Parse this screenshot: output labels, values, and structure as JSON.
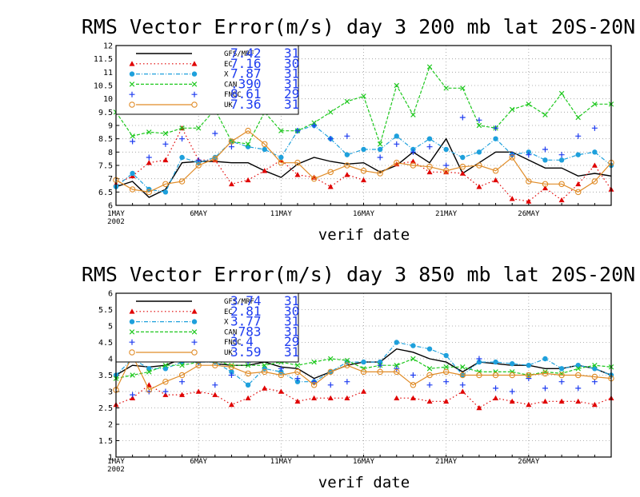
{
  "colors": {
    "GFS/MRF": "#000000",
    "EC": "#e00000",
    "X": "#1ea0dc",
    "CAN": "#1ec81e",
    "FNOC": "#1e3cf0",
    "UK": "#e08c28",
    "stat_text": "#1e3cf0",
    "grid": "#9a9a9a"
  },
  "chart_data": [
    {
      "type": "line",
      "title": "RMS Vector Error(m/s) day 3  200 mb   lat 20S-20N",
      "xlabel": "verif date",
      "ylabel": "",
      "x_start_label": "1MAY\n2002",
      "x_tick_labels": [
        "1MAY",
        "6MAY",
        "11MAY",
        "16MAY",
        "21MAY",
        "26MAY"
      ],
      "x_tick_days": [
        1,
        6,
        11,
        16,
        21,
        26
      ],
      "xlim": [
        1,
        31
      ],
      "ylim": [
        6,
        12
      ],
      "y_ticks": [
        6,
        6.5,
        7,
        7.5,
        8,
        8.5,
        9,
        9.5,
        10,
        10.5,
        11,
        11.5,
        12
      ],
      "grid": true,
      "legend_placement": "top-left",
      "series": [
        {
          "name": "GFS/MRF",
          "stat": "7.42",
          "count": "31",
          "marker": "none",
          "dash": "solid",
          "values": [
            6.7,
            6.9,
            6.3,
            6.6,
            7.6,
            7.65,
            7.65,
            7.6,
            7.6,
            7.3,
            7.05,
            7.55,
            7.8,
            7.65,
            7.55,
            7.6,
            7.25,
            7.5,
            8.0,
            7.6,
            8.5,
            7.2,
            7.6,
            8.0,
            8.0,
            7.7,
            7.4,
            7.4,
            7.1,
            7.2,
            7.1
          ]
        },
        {
          "name": "EC",
          "stat": "7.16",
          "count": "30",
          "marker": "triangle",
          "dash": "dotted",
          "values": [
            6.8,
            7.1,
            7.6,
            7.7,
            8.9,
            7.7,
            7.7,
            6.8,
            6.95,
            7.3,
            7.7,
            7.15,
            7.05,
            6.7,
            7.15,
            6.95,
            null,
            7.55,
            7.65,
            7.25,
            7.25,
            7.2,
            6.7,
            6.95,
            6.25,
            6.15,
            6.65,
            6.2,
            6.8,
            7.5,
            6.6
          ]
        },
        {
          "name": "X",
          "stat": "7.87",
          "count": "31",
          "marker": "circle",
          "dash": "dashdot",
          "values": [
            6.7,
            7.2,
            6.6,
            6.5,
            7.8,
            7.6,
            7.8,
            8.4,
            8.2,
            8.1,
            7.8,
            8.8,
            9.0,
            8.5,
            7.9,
            8.1,
            8.1,
            8.6,
            8.1,
            8.5,
            8.1,
            7.8,
            8.0,
            8.5,
            7.9,
            8.0,
            7.7,
            7.7,
            7.9,
            8.0,
            7.5
          ]
        },
        {
          "name": "CAN",
          "stat": ".390",
          "count": "31",
          "marker": "x",
          "dash": "dashed",
          "values": [
            9.5,
            8.6,
            8.75,
            8.7,
            8.9,
            8.9,
            9.6,
            8.4,
            8.3,
            9.5,
            8.8,
            8.8,
            9.1,
            9.5,
            9.9,
            10.1,
            8.3,
            10.5,
            9.4,
            11.2,
            10.4,
            10.4,
            9.0,
            8.9,
            9.6,
            9.8,
            9.4,
            10.2,
            9.3,
            9.8,
            9.8
          ]
        },
        {
          "name": "FNOC",
          "stat": "8.61",
          "count": "29",
          "marker": "plus",
          "dash": "none",
          "values": [
            null,
            8.4,
            7.8,
            8.3,
            8.5,
            7.7,
            8.7,
            8.2,
            9.6,
            null,
            9.9,
            8.8,
            9.0,
            8.5,
            8.6,
            null,
            7.8,
            8.3,
            8.0,
            8.2,
            7.5,
            9.3,
            9.2,
            8.9,
            7.9,
            7.9,
            8.1,
            7.9,
            8.6,
            8.9,
            null
          ]
        },
        {
          "name": "UK",
          "stat": "7.36",
          "count": "31",
          "marker": "opencircle",
          "dash": "solid",
          "values": [
            6.95,
            6.6,
            6.5,
            6.8,
            6.9,
            7.5,
            7.75,
            8.4,
            8.8,
            8.3,
            7.6,
            7.6,
            7.0,
            7.25,
            7.5,
            7.3,
            7.2,
            7.6,
            7.5,
            7.45,
            7.3,
            7.45,
            7.5,
            7.3,
            7.8,
            6.9,
            6.8,
            6.8,
            6.5,
            6.9,
            7.6
          ]
        }
      ]
    },
    {
      "type": "line",
      "title": "RMS Vector Error(m/s) day 3  850 mb   lat 20S-20N",
      "xlabel": "verif date",
      "ylabel": "",
      "x_start_label": "1MAY\n2002",
      "x_tick_labels": [
        "1MAY",
        "6MAY",
        "11MAY",
        "16MAY",
        "21MAY",
        "26MAY"
      ],
      "x_tick_days": [
        1,
        6,
        11,
        16,
        21,
        26
      ],
      "xlim": [
        1,
        31
      ],
      "ylim": [
        1,
        6
      ],
      "y_ticks": [
        1,
        1.5,
        2,
        2.5,
        3,
        3.5,
        4,
        4.5,
        5,
        5.5,
        6
      ],
      "grid": true,
      "legend_placement": "top-left",
      "series": [
        {
          "name": "GFS/MRF",
          "stat": "3.74",
          "count": "31",
          "marker": "none",
          "dash": "solid",
          "values": [
            3.5,
            3.8,
            3.75,
            3.8,
            4.0,
            4.2,
            3.85,
            3.8,
            3.8,
            3.9,
            3.75,
            3.7,
            3.4,
            3.6,
            3.8,
            3.9,
            3.9,
            4.3,
            4.2,
            4.0,
            3.9,
            3.6,
            3.9,
            3.85,
            3.8,
            3.8,
            3.7,
            3.7,
            3.8,
            3.7,
            3.5
          ]
        },
        {
          "name": "EC",
          "stat": "2.81",
          "count": "30",
          "marker": "triangle",
          "dash": "dotted",
          "values": [
            2.6,
            2.8,
            3.2,
            2.9,
            2.9,
            3.0,
            2.9,
            2.6,
            2.8,
            3.1,
            3.0,
            2.7,
            2.8,
            2.8,
            2.8,
            3.0,
            null,
            2.8,
            2.8,
            2.7,
            2.7,
            3.0,
            2.5,
            2.8,
            2.7,
            2.6,
            2.7,
            2.7,
            2.7,
            2.6,
            2.8
          ]
        },
        {
          "name": "X",
          "stat": "3.77",
          "count": "31",
          "marker": "circle",
          "dash": "dashdot",
          "values": [
            3.5,
            4.0,
            3.7,
            3.7,
            3.9,
            3.9,
            3.9,
            3.6,
            3.2,
            3.7,
            3.6,
            3.3,
            3.3,
            3.6,
            3.9,
            3.9,
            3.9,
            4.5,
            4.4,
            4.3,
            4.1,
            3.5,
            3.9,
            3.9,
            3.85,
            3.8,
            4.0,
            3.7,
            3.8,
            3.7,
            3.5
          ]
        },
        {
          "name": "CAN",
          "stat": ".783",
          "count": "31",
          "marker": "x",
          "dash": "dashed",
          "values": [
            3.4,
            3.5,
            3.6,
            3.8,
            3.8,
            3.9,
            3.95,
            3.8,
            3.8,
            3.8,
            3.9,
            3.8,
            3.9,
            4.0,
            3.95,
            3.7,
            3.8,
            3.8,
            4.0,
            3.7,
            3.75,
            3.75,
            3.6,
            3.6,
            3.6,
            3.5,
            3.6,
            3.55,
            3.7,
            3.8,
            3.75
          ]
        },
        {
          "name": "FNOC",
          "stat": "3.4",
          "count": "29",
          "marker": "plus",
          "dash": "none",
          "values": [
            null,
            2.9,
            3.0,
            3.0,
            3.3,
            3.9,
            3.2,
            3.5,
            3.9,
            null,
            3.7,
            3.4,
            3.3,
            3.2,
            3.3,
            null,
            3.8,
            3.7,
            3.5,
            3.2,
            3.3,
            3.2,
            4.0,
            3.1,
            3.0,
            3.4,
            3.1,
            3.3,
            3.1,
            3.3,
            null
          ]
        },
        {
          "name": "UK",
          "stat": "3.59",
          "count": "31",
          "marker": "opencircle",
          "dash": "solid",
          "values": [
            3.05,
            4.1,
            3.05,
            3.3,
            3.5,
            3.8,
            3.8,
            3.75,
            3.55,
            3.6,
            3.5,
            3.6,
            3.2,
            3.6,
            3.8,
            3.6,
            3.6,
            3.6,
            3.2,
            3.5,
            3.6,
            3.5,
            3.5,
            3.5,
            3.5,
            3.5,
            3.55,
            3.5,
            3.5,
            3.45,
            3.4
          ]
        }
      ]
    }
  ]
}
